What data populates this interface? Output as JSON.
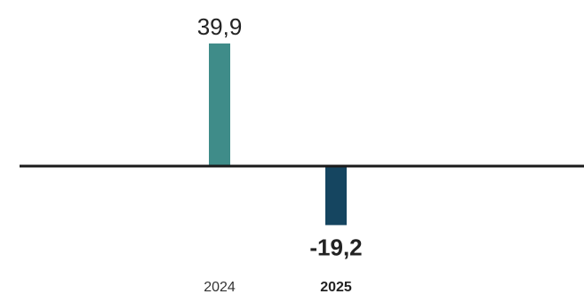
{
  "chart_data": {
    "type": "bar",
    "categories": [
      "2024",
      "2025"
    ],
    "values": [
      39.9,
      -19.2
    ],
    "value_labels": [
      "39,9",
      "-19,2"
    ],
    "highlighted_category": "2025",
    "colors": [
      "#3f8c89",
      "#154560"
    ],
    "zero_line_color": "#1a1a1a",
    "ylim": [
      -26,
      48
    ],
    "grid": false,
    "title": "",
    "xlabel": "",
    "ylabel": ""
  }
}
